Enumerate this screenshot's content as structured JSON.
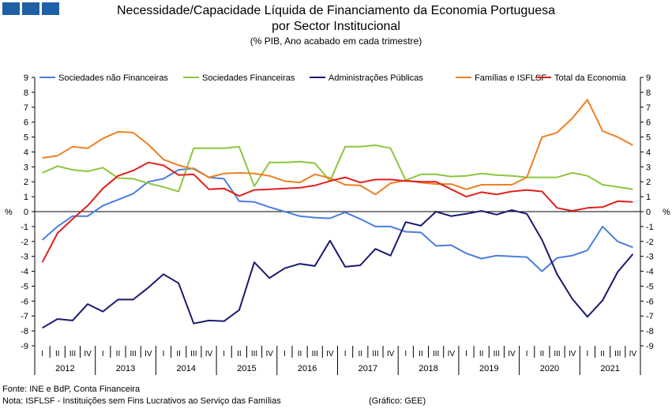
{
  "logo": {
    "icon": "gee-logo-icon",
    "color": "#1f5fa6"
  },
  "title_line1": "Necessidade/Capacidade Líquida de Financiamento da Economia Portuguesa",
  "title_line2": "por Sector Institucional",
  "subtitle": "(% PIB, Ano acabado em cada trimestre)",
  "footer": {
    "source": "Fonte: INE e  BdP, Conta Financeira",
    "note": "Nota: ISFLSF - Instituições sem Fins Lucrativos ao Serviço das Famílias",
    "credit": "(Gráfico: GEE)"
  },
  "chart_data": {
    "type": "line",
    "title": "Necessidade/Capacidade Líquida de Financiamento da Economia Portuguesa por Sector Institucional",
    "subtitle": "(% PIB, Ano acabado em cada trimestre)",
    "ylabel": "%",
    "ylabel_right": "%",
    "ylim": [
      -9,
      9
    ],
    "yticks": [
      9,
      8,
      7,
      6,
      5,
      4,
      3,
      2,
      1,
      0,
      -1,
      -2,
      -3,
      -4,
      -5,
      -6,
      -7,
      -8,
      -9
    ],
    "grid": false,
    "legend": "top",
    "quarters": [
      "I",
      "II",
      "III",
      "IV",
      "I",
      "II",
      "III",
      "IV",
      "I",
      "II",
      "III",
      "IV",
      "I",
      "II",
      "III",
      "IV",
      "I",
      "II",
      "III",
      "IV",
      "I",
      "II",
      "III",
      "IV",
      "I",
      "II",
      "III",
      "IV",
      "I",
      "II",
      "III",
      "IV",
      "I",
      "II",
      "III",
      "IV",
      "I",
      "II",
      "III",
      "IV"
    ],
    "years": [
      "2012",
      "2013",
      "2014",
      "2015",
      "2016",
      "2017",
      "2018",
      "2019",
      "2020",
      "2021"
    ],
    "series": [
      {
        "name": "Sociedades não Financeiras",
        "color": "#4a7de0",
        "values": [
          -1.9,
          -1.0,
          -0.3,
          -0.3,
          0.4,
          0.8,
          1.2,
          2.0,
          2.2,
          2.8,
          2.9,
          2.3,
          2.2,
          0.7,
          0.65,
          0.3,
          0.0,
          -0.3,
          -0.4,
          -0.45,
          -0.05,
          -0.5,
          -1.0,
          -1.0,
          -1.35,
          -1.4,
          -2.3,
          -2.25,
          -2.8,
          -3.15,
          -2.95,
          -3.0,
          -3.05,
          -4.0,
          -3.1,
          -2.95,
          -2.6,
          -1.0,
          -2.0,
          -2.4
        ]
      },
      {
        "name": "Sociedades Financeiras",
        "color": "#8dc63f",
        "values": [
          2.6,
          3.05,
          2.8,
          2.7,
          2.95,
          2.25,
          2.2,
          1.9,
          1.65,
          1.35,
          4.25,
          4.25,
          4.25,
          4.35,
          1.7,
          3.3,
          3.3,
          3.35,
          3.25,
          2.05,
          4.35,
          4.35,
          4.45,
          4.25,
          2.1,
          2.5,
          2.5,
          2.35,
          2.4,
          2.55,
          2.45,
          2.4,
          2.3,
          2.3,
          2.3,
          2.6,
          2.4,
          1.8,
          1.65,
          1.5
        ]
      },
      {
        "name": "Administrações Públicas",
        "color": "#1a1a6e",
        "values": [
          -7.8,
          -7.2,
          -7.3,
          -6.2,
          -6.7,
          -5.9,
          -5.9,
          -5.1,
          -4.2,
          -4.8,
          -7.5,
          -7.3,
          -7.35,
          -6.6,
          -3.4,
          -4.45,
          -3.8,
          -3.5,
          -3.65,
          -1.95,
          -3.7,
          -3.6,
          -2.5,
          -2.95,
          -0.7,
          -0.95,
          0.0,
          -0.3,
          -0.15,
          0.05,
          -0.2,
          0.1,
          -0.15,
          -1.9,
          -4.2,
          -5.85,
          -7.05,
          -5.95,
          -4.05,
          -2.85
        ]
      },
      {
        "name": "Famílias e ISFLSF",
        "color": "#f07f22",
        "values": [
          3.6,
          3.75,
          4.35,
          4.25,
          4.9,
          5.35,
          5.3,
          4.5,
          3.5,
          3.1,
          2.85,
          2.3,
          2.55,
          2.6,
          2.55,
          2.4,
          2.05,
          1.95,
          2.5,
          2.25,
          1.8,
          1.75,
          1.15,
          1.9,
          2.1,
          1.95,
          1.85,
          1.85,
          1.5,
          1.8,
          1.8,
          1.8,
          2.3,
          5.0,
          5.3,
          6.25,
          7.5,
          5.4,
          5.0,
          4.45
        ]
      },
      {
        "name": "Total da Economia",
        "color": "#e0201b",
        "values": [
          -3.4,
          -1.45,
          -0.5,
          0.4,
          1.55,
          2.4,
          2.75,
          3.3,
          3.1,
          2.45,
          2.5,
          1.5,
          1.55,
          1.05,
          1.45,
          1.5,
          1.55,
          1.6,
          1.75,
          2.05,
          2.3,
          1.95,
          2.15,
          2.15,
          2.05,
          2.0,
          2.0,
          1.5,
          1.0,
          1.3,
          1.15,
          1.35,
          1.45,
          1.35,
          0.25,
          0.05,
          0.25,
          0.3,
          0.7,
          0.65
        ]
      }
    ]
  }
}
